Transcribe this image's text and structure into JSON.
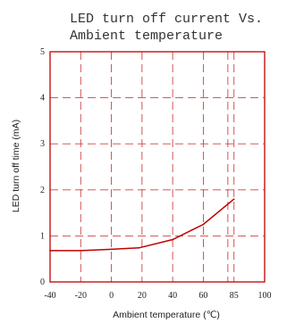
{
  "chart_data": {
    "type": "line",
    "title_lines": [
      "LED turn off current Vs.",
      "Ambient temperature"
    ],
    "xlabel": "Ambient temperature (℃)",
    "ylabel": "LED turn off time (mA)",
    "xlim": [
      -40,
      100
    ],
    "ylim": [
      0,
      5
    ],
    "x_ticks": [
      -40,
      -20,
      0,
      20,
      40,
      60,
      85,
      100
    ],
    "x_tick_labels": [
      "-40",
      "-20",
      "0",
      "20",
      "40",
      "60",
      "85",
      "100"
    ],
    "x_gridlines": [
      -20,
      0,
      20,
      40,
      60,
      80,
      85
    ],
    "y_ticks": [
      0,
      1,
      2,
      3,
      4,
      5
    ],
    "y_tick_labels": [
      "0",
      "1",
      "2",
      "3",
      "4",
      "5"
    ],
    "grid": true,
    "grid_style": "dashed",
    "colors": {
      "frame": "#c00000",
      "grid": "#d04040",
      "series": "#c00000"
    },
    "series": [
      {
        "points": [
          [
            -40,
            0.68
          ],
          [
            -20,
            0.68
          ],
          [
            0,
            0.71
          ],
          [
            18,
            0.74
          ],
          [
            40,
            0.92
          ],
          [
            60,
            1.25
          ],
          [
            85,
            1.8
          ]
        ]
      }
    ]
  }
}
